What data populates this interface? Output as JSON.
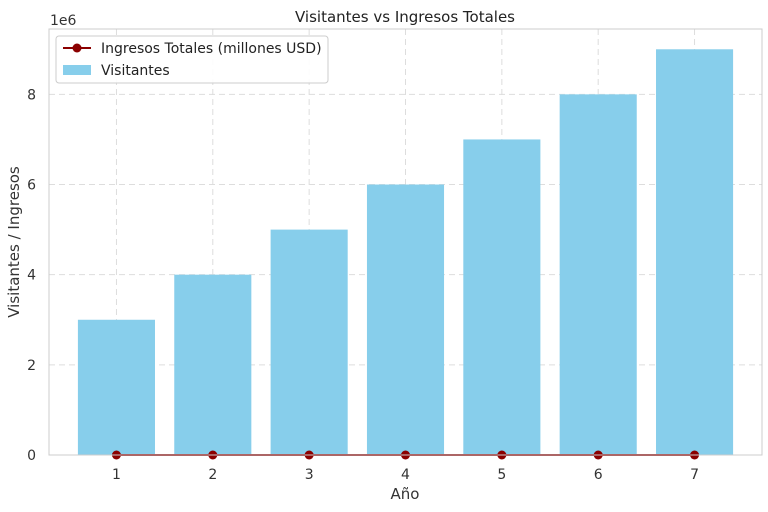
{
  "chart_data": {
    "type": "bar",
    "title": "Visitantes vs Ingresos Totales",
    "xlabel": "Año",
    "ylabel": "Visitantes / Ingresos",
    "y_multiplier_label": "1e6",
    "categories": [
      "1",
      "2",
      "3",
      "4",
      "5",
      "6",
      "7"
    ],
    "x": [
      1,
      2,
      3,
      4,
      5,
      6,
      7
    ],
    "series": [
      {
        "name": "Visitantes",
        "type": "bar",
        "values": [
          3000000,
          4000000,
          5000000,
          6000000,
          7000000,
          8000000,
          9000000
        ],
        "color": "#87ceeb"
      },
      {
        "name": "Ingresos Totales (millones USD)",
        "type": "line",
        "values": [
          0,
          0,
          0,
          0,
          0,
          0,
          0
        ],
        "color": "#8b0000"
      }
    ],
    "ylim": [
      0,
      9450000
    ],
    "yticks": [
      0,
      2000000,
      4000000,
      6000000,
      8000000
    ],
    "ytick_labels": [
      "0",
      "2",
      "4",
      "6",
      "8"
    ],
    "grid": true,
    "legend_position": "top-left"
  }
}
